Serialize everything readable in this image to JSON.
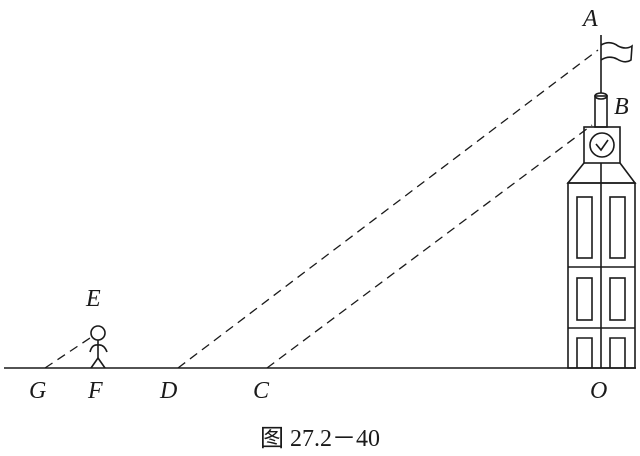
{
  "labels": {
    "A": "A",
    "B": "B",
    "C": "C",
    "D": "D",
    "E": "E",
    "F": "F",
    "G": "G",
    "O": "O"
  },
  "caption": "图 27.2－40"
}
